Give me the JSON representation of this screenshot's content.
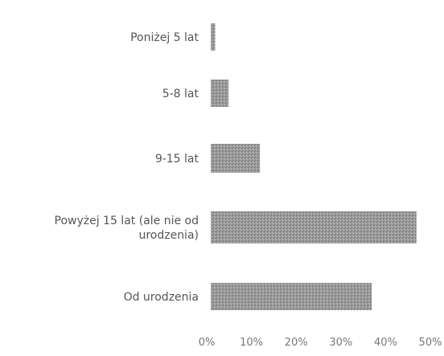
{
  "chart_data": {
    "type": "bar",
    "orientation": "horizontal",
    "categories": [
      [
        "Poniżej 5 lat"
      ],
      [
        "5-8 lat"
      ],
      [
        "9-15 lat"
      ],
      [
        "Powyżej 15 lat (ale nie od",
        "urodzenia)"
      ],
      [
        "Od urodzenia"
      ]
    ],
    "values": [
      1,
      4,
      11,
      46,
      36
    ],
    "xlim": [
      0,
      50
    ],
    "xticks": [
      "0%",
      "10%",
      "20%",
      "30%",
      "40%",
      "50%"
    ],
    "title": "",
    "xlabel": "",
    "ylabel": "",
    "grid": false,
    "colors": {
      "bar": "#8f8f8f",
      "text": "#555555"
    }
  }
}
